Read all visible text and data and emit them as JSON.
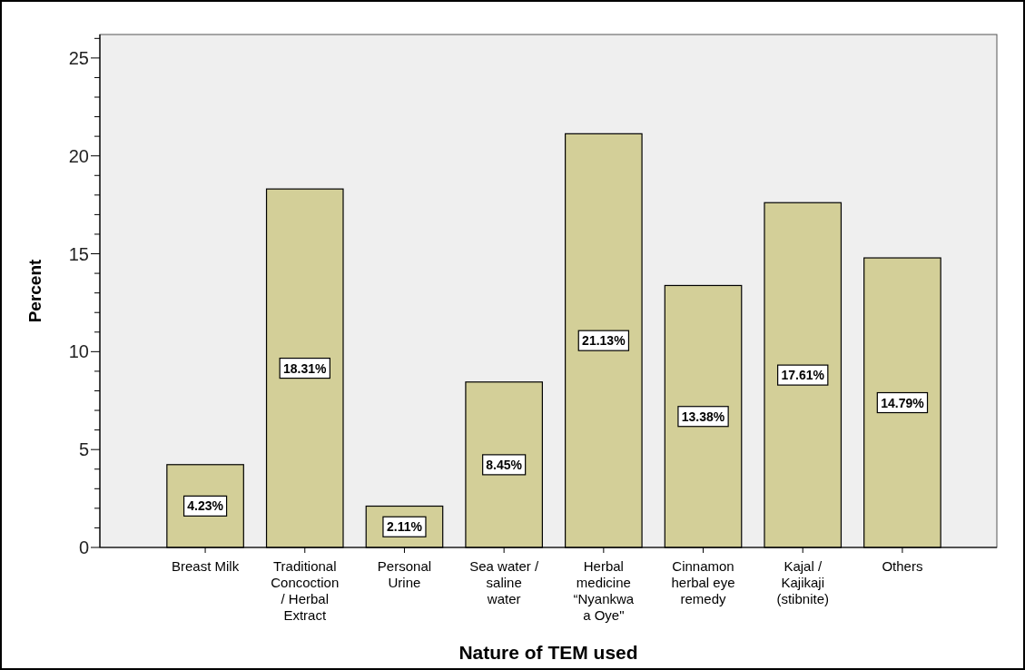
{
  "chart_data": {
    "type": "bar",
    "xlabel": "Nature of TEM used",
    "ylabel": "Percent",
    "categories": [
      "Breast Milk",
      "Traditional\nConcoction\n/ Herbal\nExtract",
      "Personal\nUrine",
      "Sea water /\nsaline\nwater",
      "Herbal\nmedicine\n“Nyankwa\na Oye\"",
      "Cinnamon\nherbal eye\nremedy",
      "Kajal /\nKajikaji\n(stibnite)",
      "Others"
    ],
    "values": [
      4.23,
      18.31,
      2.11,
      8.45,
      21.13,
      13.38,
      17.61,
      14.79
    ],
    "value_labels": [
      "4.23%",
      "18.31%",
      "2.11%",
      "8.45%",
      "21.13%",
      "13.38%",
      "17.61%",
      "14.79%"
    ],
    "color": "#d3cf98",
    "ylim": [
      0,
      26.2
    ],
    "yticks": [
      0,
      {
        "value": 1,
        "label": null
      },
      {
        "value": 2,
        "label": null
      },
      {
        "value": 3,
        "label": null
      },
      {
        "value": 4,
        "label": null
      },
      5,
      {
        "value": 6,
        "label": null
      },
      {
        "value": 7,
        "label": null
      },
      {
        "value": 8,
        "label": null
      },
      {
        "value": 9,
        "label": null
      },
      10,
      {
        "value": 11,
        "label": null
      },
      {
        "value": 12,
        "label": null
      },
      {
        "value": 13,
        "label": null
      },
      {
        "value": 14,
        "label": null
      },
      15,
      {
        "value": 16,
        "label": null
      },
      {
        "value": 17,
        "label": null
      },
      {
        "value": 18,
        "label": null
      },
      {
        "value": 19,
        "label": null
      },
      20,
      {
        "value": 21,
        "label": null
      },
      {
        "value": 22,
        "label": null
      },
      {
        "value": 23,
        "label": null
      },
      {
        "value": 24,
        "label": null
      },
      25,
      {
        "value": 26,
        "label": null
      }
    ],
    "grid": false
  }
}
